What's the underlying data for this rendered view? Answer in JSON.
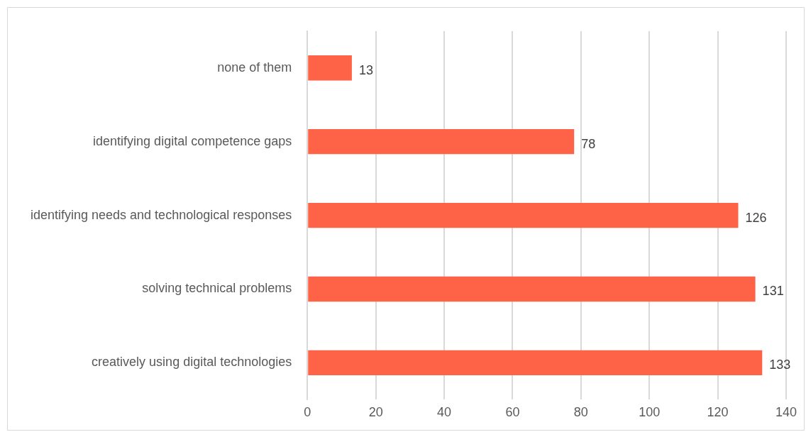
{
  "chart_data": {
    "type": "bar",
    "orientation": "horizontal",
    "categories": [
      "none of them",
      "identifying digital competence gaps",
      "identifying needs and technological responses",
      "solving technical problems",
      "creatively using digital technologies"
    ],
    "values": [
      13,
      78,
      126,
      131,
      133
    ],
    "color": "#ff6347",
    "xlim": [
      0,
      140
    ],
    "xticks": [
      0,
      20,
      40,
      60,
      80,
      100,
      120,
      140
    ],
    "grid": "x",
    "data_labels": true,
    "legend": false
  }
}
